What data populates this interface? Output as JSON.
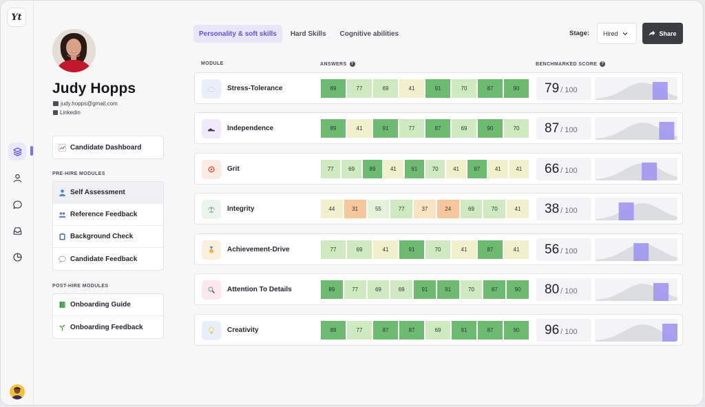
{
  "app": {
    "logo_text": "Yt"
  },
  "colors": {
    "accent": "#7b72e9",
    "tab_active_bg": "#e7e6fb",
    "tab_active_text": "#6256e0",
    "share_bg": "#3a3d42",
    "score_dark_green": "#6dbb71",
    "score_light_green": "#cfeac1",
    "score_pale_green": "#e3f2d8",
    "score_yellow": "#f2efcd",
    "score_orange": "#f6c79b",
    "score_peach": "#fae3c2",
    "curve": "#dcdde0",
    "marker": "#9b92ee"
  },
  "candidate": {
    "name": "Judy Hopps",
    "email": "judy.hopps@gmail.com",
    "linkedin": "Linkedin"
  },
  "sidebar": {
    "dashboard_label": "Candidate Dashboard",
    "prehire_heading": "PRE-HIRE MODULES",
    "prehire_items": [
      {
        "label": "Self Assessment",
        "icon": "person-emoji"
      },
      {
        "label": "Reference Feedback",
        "icon": "people-emoji"
      },
      {
        "label": "Background Check",
        "icon": "clipboard-emoji"
      },
      {
        "label": "Candidate Feedback",
        "icon": "speech-bubble-emoji"
      }
    ],
    "posthire_heading": "POST-HIRE MODULES",
    "posthire_items": [
      {
        "label": "Onboarding Guide",
        "icon": "book-emoji"
      },
      {
        "label": "Onboarding Feedback",
        "icon": "sprout-emoji"
      }
    ]
  },
  "tabs": [
    {
      "label": "Personality & soft skills",
      "active": true
    },
    {
      "label": "Hard Skills",
      "active": false
    },
    {
      "label": "Cognitive abilities",
      "active": false
    }
  ],
  "stage": {
    "label": "Stage:",
    "value": "Hired"
  },
  "share_label": "Share",
  "columns": {
    "module": "MODULE",
    "answers": "ANSWERS",
    "score": "BENCHMARKED SCORE"
  },
  "score_suffix": "/ 100",
  "modules": [
    {
      "name": "Stress-Tolerance",
      "icon": "cloud-emoji",
      "icon_bg": "#e9eefb",
      "answers": [
        89,
        77,
        69,
        41,
        91,
        70,
        87,
        90
      ],
      "score": 79
    },
    {
      "name": "Independence",
      "icon": "shoe-emoji",
      "icon_bg": "#f1e8f9",
      "answers": [
        89,
        41,
        91,
        77,
        87,
        69,
        90,
        70
      ],
      "score": 87
    },
    {
      "name": "Grit",
      "icon": "target-emoji",
      "icon_bg": "#fbebe2",
      "answers": [
        77,
        69,
        89,
        41,
        91,
        70,
        41,
        87,
        41,
        41
      ],
      "score": 66
    },
    {
      "name": "Integrity",
      "icon": "scales-emoji",
      "icon_bg": "#e9f4ea",
      "answers": [
        44,
        31,
        55,
        77,
        37,
        24,
        69,
        70,
        41
      ],
      "score": 38
    },
    {
      "name": "Achievement-Drive",
      "icon": "medal-emoji",
      "icon_bg": "#fbf0dd",
      "answers": [
        77,
        69,
        41,
        91,
        70,
        41,
        87,
        41
      ],
      "score": 56
    },
    {
      "name": "Attention To Details",
      "icon": "magnifier-emoji",
      "icon_bg": "#fbe8ea",
      "answers": [
        89,
        77,
        69,
        69,
        91,
        91,
        70,
        87,
        90
      ],
      "score": 80
    },
    {
      "name": "Creativity",
      "icon": "lightbulb-emoji",
      "icon_bg": "#e9eefb",
      "answers": [
        89,
        77,
        87,
        87,
        69,
        91,
        87,
        90
      ],
      "score": 96
    }
  ]
}
